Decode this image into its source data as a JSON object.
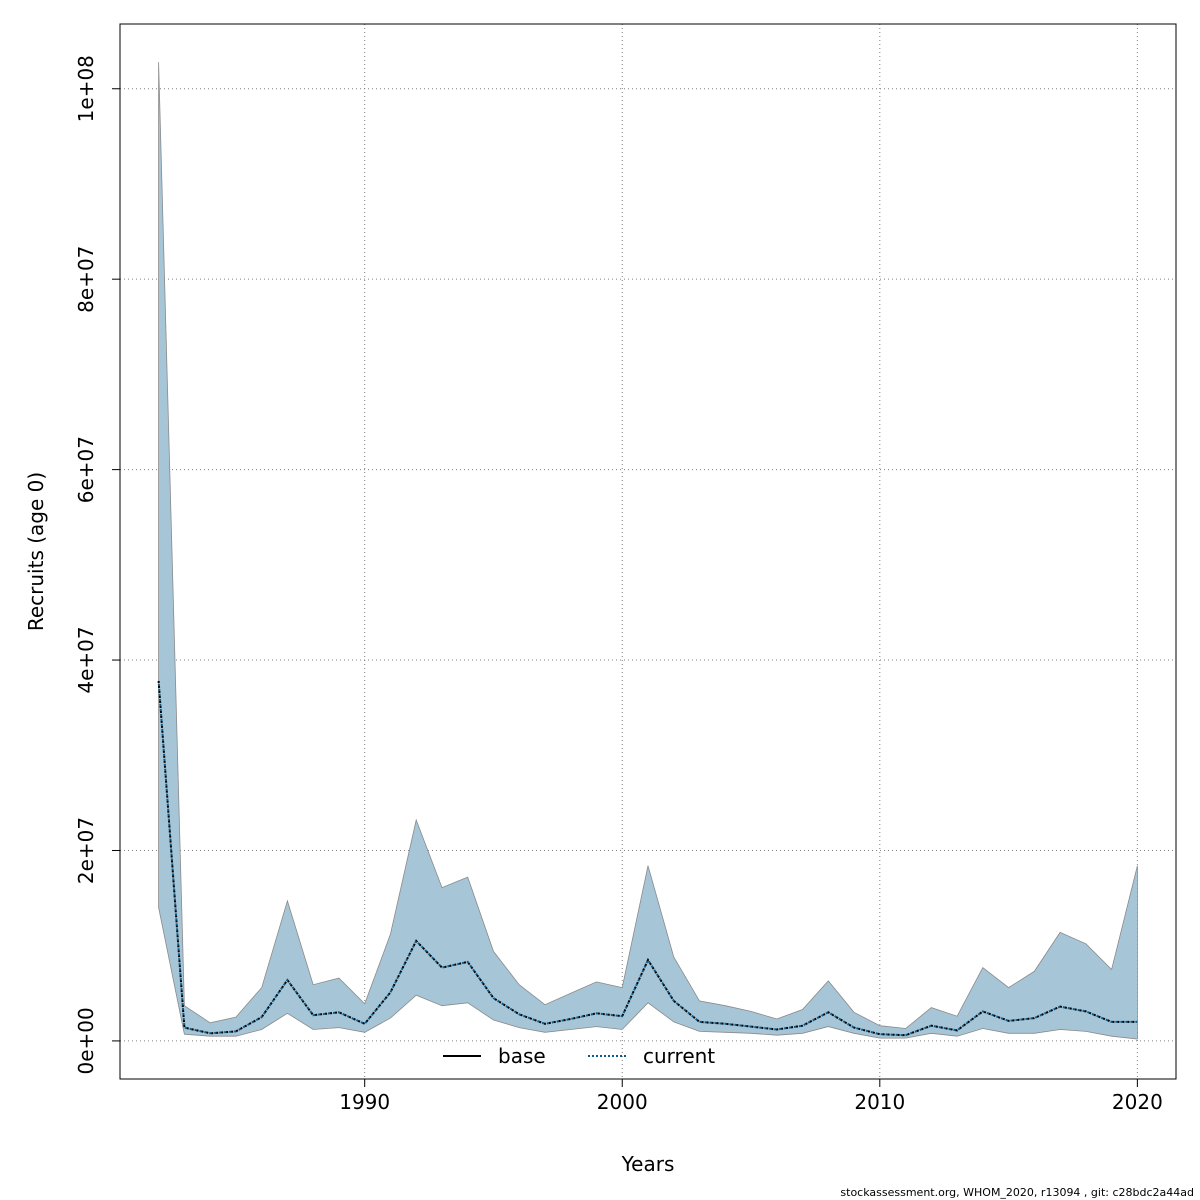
{
  "chart_data": {
    "type": "area",
    "xlabel": "Years",
    "ylabel": "Recruits (age 0)",
    "xlim": [
      1980.5,
      2021.5
    ],
    "ylim": [
      -4000000,
      106800000
    ],
    "x_ticks": [
      1990,
      2000,
      2010,
      2020
    ],
    "x_tick_labels": [
      "1990",
      "2000",
      "2010",
      "2020"
    ],
    "y_ticks": [
      0,
      20000000,
      40000000,
      60000000,
      80000000,
      100000000
    ],
    "y_tick_labels": [
      "0e+00",
      "2e+07",
      "4e+07",
      "6e+07",
      "8e+07",
      "1e+08"
    ],
    "grid": true,
    "legend_position": "bottom-center",
    "colors": {
      "band": "#a6c5d6",
      "band_edge": "#8a8a8a",
      "base": "#000000",
      "current": "#0a5a8a",
      "grid": "#808080"
    },
    "x": [
      1982,
      1983,
      1984,
      1985,
      1986,
      1987,
      1988,
      1989,
      1990,
      1991,
      1992,
      1993,
      1994,
      1995,
      1996,
      1997,
      1998,
      1999,
      2000,
      2001,
      2002,
      2003,
      2004,
      2005,
      2006,
      2007,
      2008,
      2009,
      2010,
      2011,
      2012,
      2013,
      2014,
      2015,
      2016,
      2017,
      2018,
      2019,
      2020
    ],
    "upper": [
      102800000,
      3700000,
      1900000,
      2500000,
      5600000,
      14700000,
      5900000,
      6600000,
      3900000,
      11200000,
      23200000,
      16100000,
      17200000,
      9400000,
      5900000,
      3800000,
      5000000,
      6200000,
      5600000,
      18400000,
      8800000,
      4200000,
      3700000,
      3100000,
      2300000,
      3300000,
      6300000,
      3000000,
      1600000,
      1300000,
      3500000,
      2600000,
      7700000,
      5600000,
      7300000,
      11400000,
      10200000,
      7500000,
      18400000
    ],
    "lower": [
      14000000,
      700000,
      500000,
      500000,
      1200000,
      2900000,
      1200000,
      1400000,
      900000,
      2400000,
      4800000,
      3700000,
      4000000,
      2200000,
      1400000,
      900000,
      1200000,
      1500000,
      1200000,
      4000000,
      2000000,
      1000000,
      900000,
      800000,
      600000,
      800000,
      1500000,
      800000,
      300000,
      300000,
      800000,
      500000,
      1300000,
      800000,
      800000,
      1200000,
      1000000,
      500000,
      200000
    ],
    "series": [
      {
        "name": "base",
        "values": [
          37800000,
          1400000,
          800000,
          1000000,
          2500000,
          6400000,
          2700000,
          3000000,
          1800000,
          5100000,
          10500000,
          7700000,
          8300000,
          4500000,
          2800000,
          1800000,
          2300000,
          2900000,
          2600000,
          8500000,
          4200000,
          2000000,
          1800000,
          1500000,
          1200000,
          1600000,
          3000000,
          1400000,
          700000,
          600000,
          1600000,
          1100000,
          3100000,
          2100000,
          2400000,
          3600000,
          3100000,
          2000000,
          2000000
        ]
      },
      {
        "name": "current",
        "values": [
          37800000,
          1400000,
          800000,
          1000000,
          2500000,
          6400000,
          2700000,
          3000000,
          1800000,
          5100000,
          10500000,
          7700000,
          8300000,
          4500000,
          2800000,
          1800000,
          2300000,
          2900000,
          2600000,
          8500000,
          4200000,
          2000000,
          1800000,
          1500000,
          1200000,
          1600000,
          3000000,
          1400000,
          700000,
          600000,
          1600000,
          1100000,
          3100000,
          2100000,
          2400000,
          3600000,
          3100000,
          2000000,
          2000000
        ]
      }
    ],
    "legend": [
      "base",
      "current"
    ]
  },
  "footer": "stockassessment.org, WHOM_2020, r13094 , git: c28bdc2a44ad"
}
